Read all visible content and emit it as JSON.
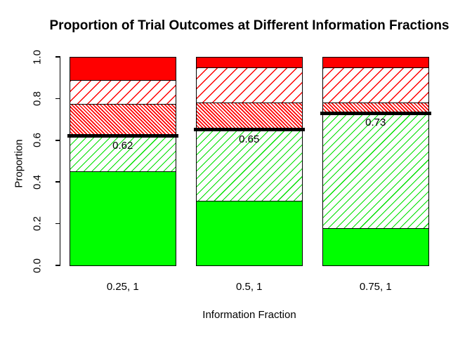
{
  "chart_data": {
    "type": "bar",
    "stacked": true,
    "title": "Proportion of Trial Outcomes at Different Information Fractions",
    "xlabel": "Information Fraction",
    "ylabel": "Proportion",
    "ylim": [
      0,
      1
    ],
    "yticks": [
      "0.0",
      "0.2",
      "0.4",
      "0.6",
      "0.8",
      "1.0"
    ],
    "grid": false,
    "legend_position": "none",
    "background_color": "#FFFFFF",
    "bar_border_color": "#000000",
    "categories": [
      "0.25, 1",
      "0.5, 1",
      "0.75, 1"
    ],
    "series": [
      {
        "name": "solid green segment",
        "style": "green-solid",
        "pattern": "solid",
        "color": "#00FF00",
        "values": [
          0.45,
          0.31,
          0.18
        ]
      },
      {
        "name": "green diagonal hatch",
        "style": "green-hatch",
        "pattern": "diagonal-hatch",
        "color": "#00FF00",
        "values": [
          0.17,
          0.34,
          0.55
        ]
      },
      {
        "name": "red dense diagonal hatch",
        "style": "red-hatch-dense",
        "pattern": "dense-diagonal-hatch",
        "color": "#FF0000",
        "values": [
          0.155,
          0.13,
          0.05
        ]
      },
      {
        "name": "red diagonal hatch",
        "style": "red-hatch",
        "pattern": "diagonal-hatch",
        "color": "#FF0000",
        "values": [
          0.115,
          0.17,
          0.17
        ]
      },
      {
        "name": "solid red segment",
        "style": "red-solid",
        "pattern": "solid",
        "color": "#FF0000",
        "values": [
          0.11,
          0.05,
          0.05
        ]
      }
    ],
    "annotations": [
      {
        "category": "0.25, 1",
        "value": 0.62,
        "label": "0.62"
      },
      {
        "category": "0.5, 1",
        "value": 0.65,
        "label": "0.65"
      },
      {
        "category": "0.75, 1",
        "value": 0.73,
        "label": "0.73"
      }
    ],
    "annotation_line_color": "#000000"
  }
}
